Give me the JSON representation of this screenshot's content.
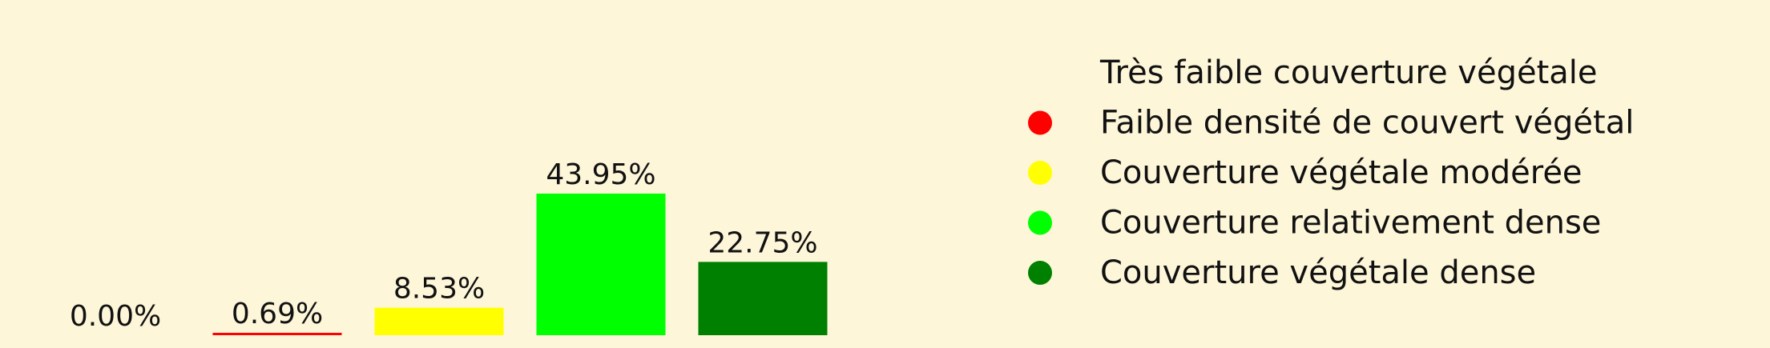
{
  "chart_data": {
    "type": "bar",
    "categories": [
      "Très faible couverture végétale",
      "Faible densité de couvert végétal",
      "Couverture végétale modérée",
      "Couverture relativement dense",
      "Couverture végétale dense"
    ],
    "values": [
      0.0,
      0.69,
      8.53,
      43.95,
      22.75
    ],
    "value_labels": [
      "0.00%",
      "0.69%",
      "8.53%",
      "43.95%",
      "22.75%"
    ],
    "colors": [
      "#fdf6d9",
      "#ff0000",
      "#ffff00",
      "#00ff00",
      "#008000"
    ],
    "title": "",
    "xlabel": "",
    "ylabel": "",
    "ylim": [
      0,
      50
    ],
    "grid": false,
    "axes_visible": false,
    "legend_position": "right"
  }
}
